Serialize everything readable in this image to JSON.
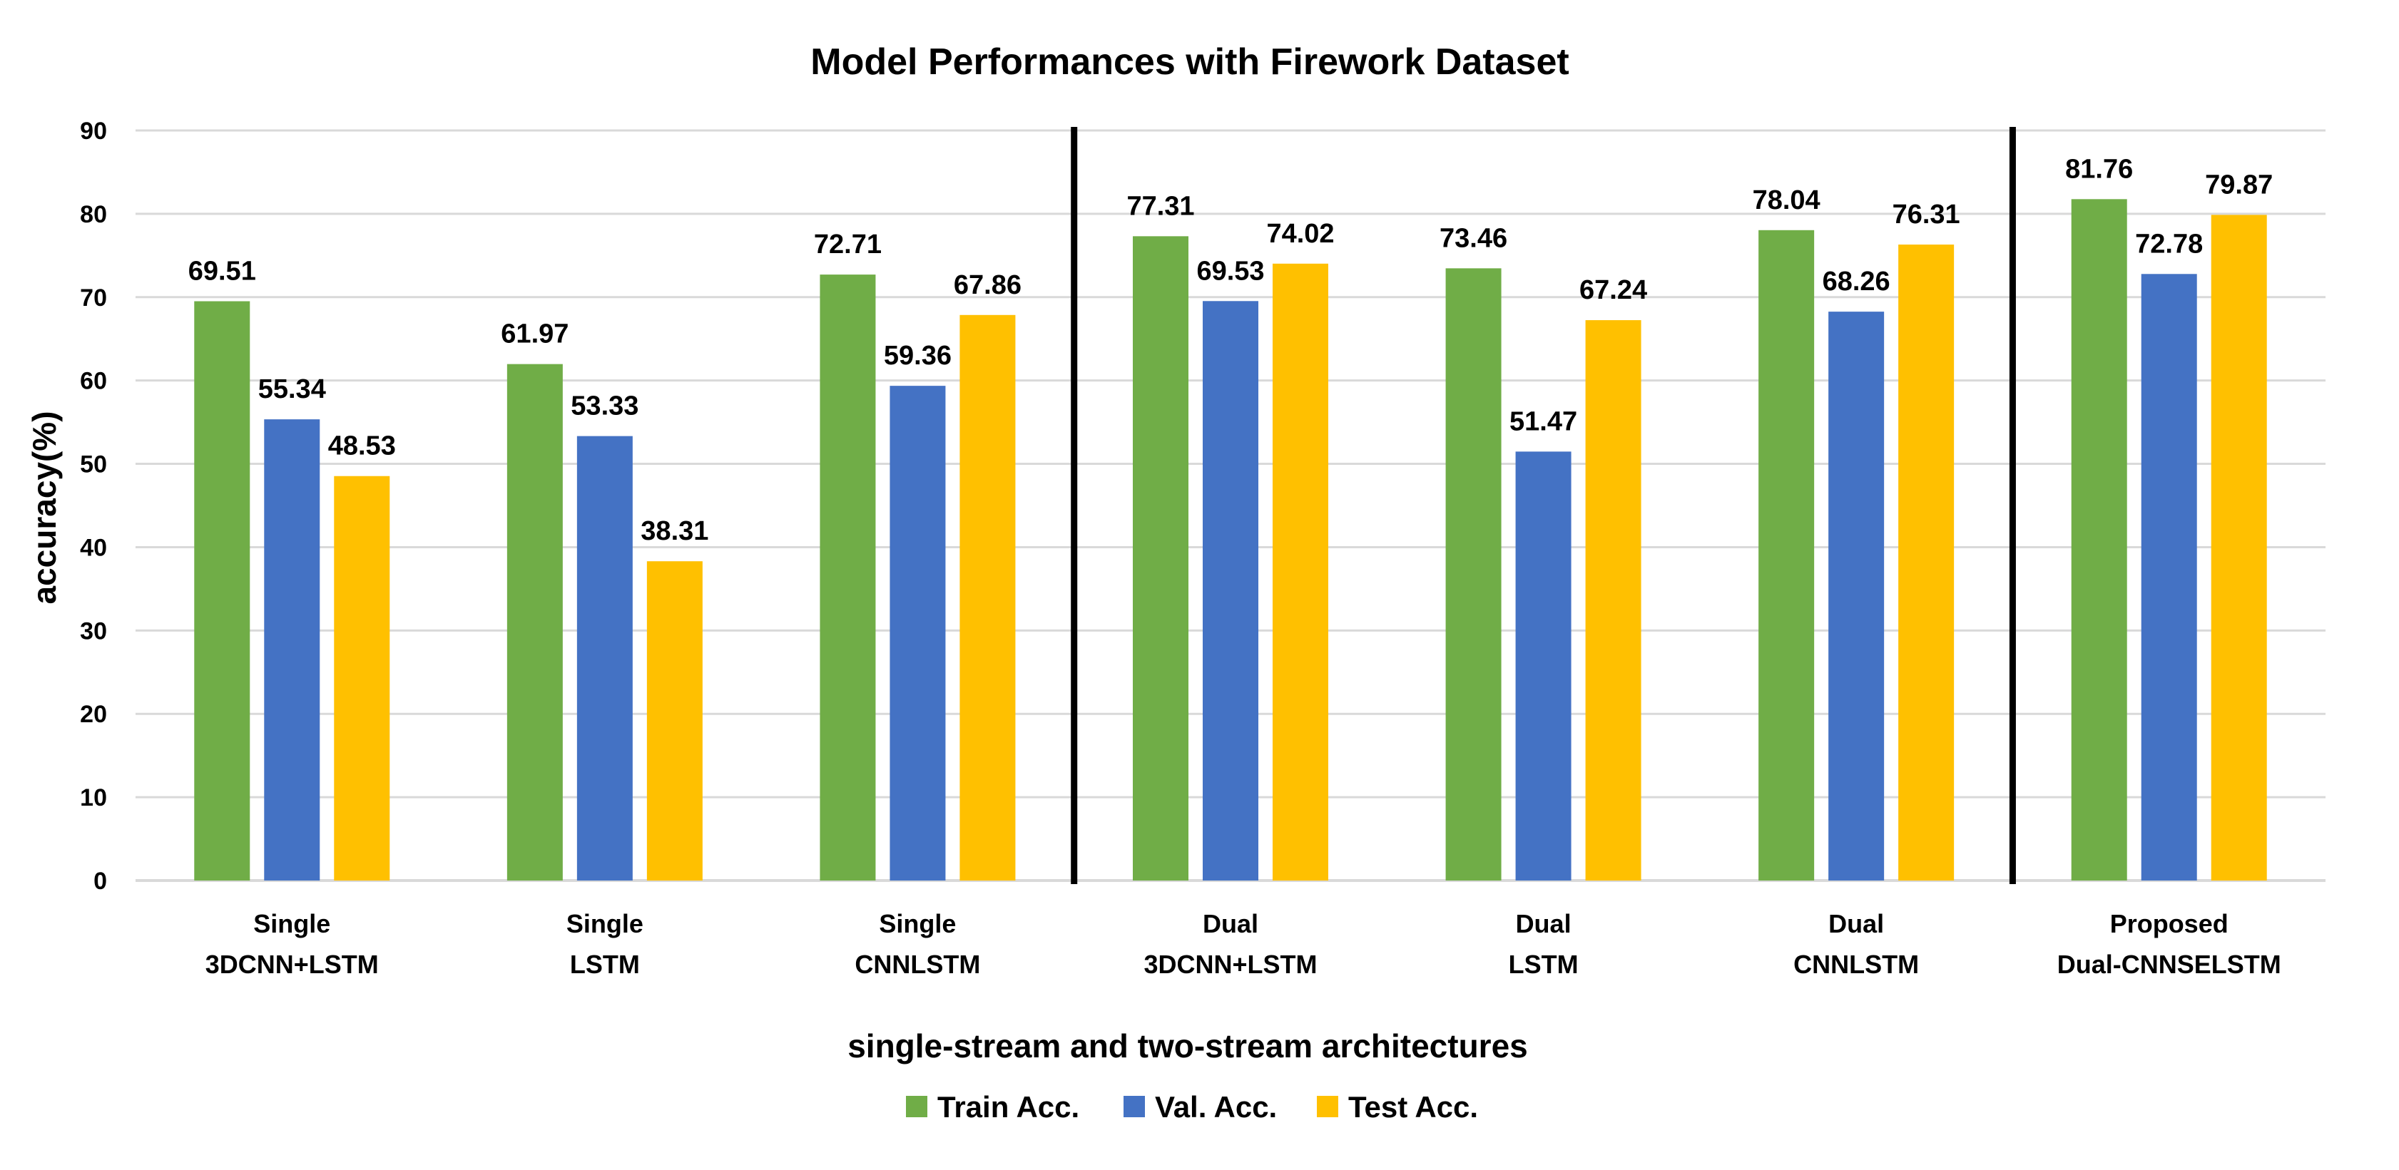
{
  "chart_data": {
    "type": "bar",
    "title": "Model Performances with Firework Dataset",
    "xlabel": "single-stream and two-stream architectures",
    "ylabel": "accuracy(%)",
    "ylim": [
      0,
      90
    ],
    "yticks": [
      0,
      10,
      20,
      30,
      40,
      50,
      60,
      70,
      80,
      90
    ],
    "grid": true,
    "categories": [
      [
        "Single",
        "3DCNN+LSTM"
      ],
      [
        "Single",
        "LSTM"
      ],
      [
        "Single",
        "CNNLSTM"
      ],
      [
        "Dual",
        "3DCNN+LSTM"
      ],
      [
        "Dual",
        "LSTM"
      ],
      [
        "Dual",
        "CNNLSTM"
      ],
      [
        "Proposed",
        "Dual-CNNSELSTM"
      ]
    ],
    "series": [
      {
        "name": "Train Acc.",
        "color": "#70ad47",
        "values": [
          69.51,
          61.97,
          72.71,
          77.31,
          73.46,
          78.04,
          81.76
        ]
      },
      {
        "name": "Val. Acc.",
        "color": "#4472c4",
        "values": [
          55.34,
          53.33,
          59.36,
          69.53,
          51.47,
          68.26,
          72.78
        ]
      },
      {
        "name": "Test Acc.",
        "color": "#ffc000",
        "values": [
          48.53,
          38.31,
          67.86,
          74.02,
          67.24,
          76.31,
          79.87
        ]
      }
    ],
    "group_dividers_after": [
      3,
      6
    ],
    "legend": "bottom-center"
  }
}
